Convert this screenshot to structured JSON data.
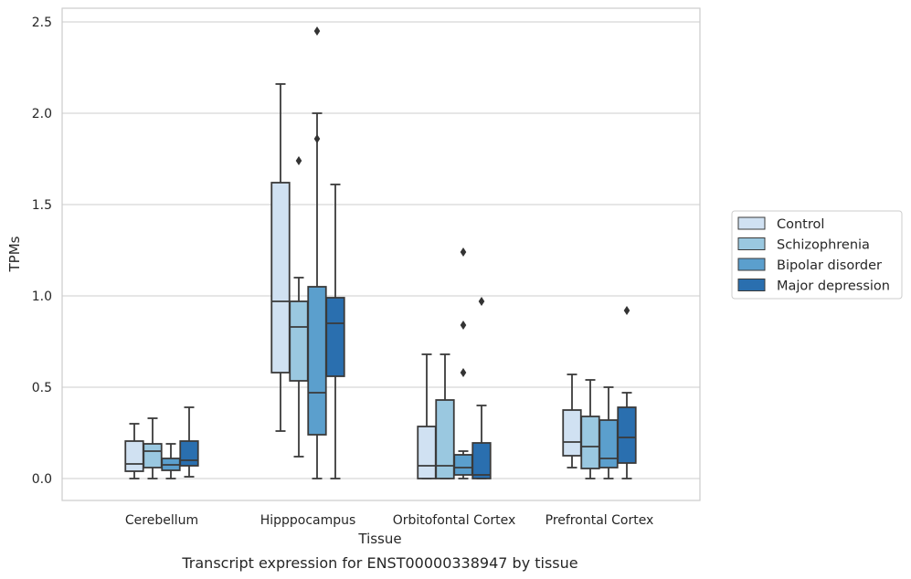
{
  "caption": "Transcript expression for ENST00000338947 by tissue",
  "chart_data": {
    "type": "box",
    "xlabel": "Tissue",
    "ylabel": "TPMs",
    "ylim": [
      -0.12,
      2.58
    ],
    "yticks": [
      0.0,
      0.5,
      1.0,
      1.5,
      2.0,
      2.5
    ],
    "ytick_labels": [
      "0.0",
      "0.5",
      "1.0",
      "1.5",
      "2.0",
      "2.5"
    ],
    "grid": "horizontal",
    "legend_position": "right",
    "categories": [
      "Cerebellum",
      "Hipppocampus",
      "Orbitofontal Cortex",
      "Prefrontal Cortex"
    ],
    "series": [
      {
        "name": "Control",
        "color": "#d0e1f2",
        "boxes": [
          {
            "whislo": 0.0,
            "q1": 0.04,
            "med": 0.08,
            "q3": 0.205,
            "whishi": 0.3,
            "fliers": []
          },
          {
            "whislo": 0.26,
            "q1": 0.58,
            "med": 0.97,
            "q3": 1.62,
            "whishi": 2.16,
            "fliers": []
          },
          {
            "whislo": 0.0,
            "q1": 0.0,
            "med": 0.07,
            "q3": 0.285,
            "whishi": 0.68,
            "fliers": []
          },
          {
            "whislo": 0.06,
            "q1": 0.125,
            "med": 0.2,
            "q3": 0.375,
            "whishi": 0.57,
            "fliers": []
          }
        ]
      },
      {
        "name": "Schizophrenia",
        "color": "#9ac8e0",
        "boxes": [
          {
            "whislo": 0.0,
            "q1": 0.06,
            "med": 0.15,
            "q3": 0.19,
            "whishi": 0.33,
            "fliers": []
          },
          {
            "whislo": 0.12,
            "q1": 0.535,
            "med": 0.83,
            "q3": 0.97,
            "whishi": 1.1,
            "fliers": [
              1.74
            ]
          },
          {
            "whislo": 0.0,
            "q1": 0.0,
            "med": 0.07,
            "q3": 0.43,
            "whishi": 0.68,
            "fliers": []
          },
          {
            "whislo": 0.0,
            "q1": 0.055,
            "med": 0.175,
            "q3": 0.34,
            "whishi": 0.54,
            "fliers": []
          }
        ]
      },
      {
        "name": "Bipolar disorder",
        "color": "#5b9fcd",
        "boxes": [
          {
            "whislo": 0.0,
            "q1": 0.045,
            "med": 0.075,
            "q3": 0.11,
            "whishi": 0.19,
            "fliers": []
          },
          {
            "whislo": 0.0,
            "q1": 0.24,
            "med": 0.47,
            "q3": 1.05,
            "whishi": 2.0,
            "fliers": [
              1.86,
              2.45
            ]
          },
          {
            "whislo": 0.0,
            "q1": 0.02,
            "med": 0.06,
            "q3": 0.13,
            "whishi": 0.15,
            "fliers": [
              0.58,
              0.84,
              1.24
            ]
          },
          {
            "whislo": 0.0,
            "q1": 0.06,
            "med": 0.11,
            "q3": 0.32,
            "whishi": 0.5,
            "fliers": []
          }
        ]
      },
      {
        "name": "Major depression",
        "color": "#2a6faf",
        "boxes": [
          {
            "whislo": 0.01,
            "q1": 0.07,
            "med": 0.1,
            "q3": 0.205,
            "whishi": 0.39,
            "fliers": []
          },
          {
            "whislo": 0.0,
            "q1": 0.56,
            "med": 0.85,
            "q3": 0.99,
            "whishi": 1.61,
            "fliers": []
          },
          {
            "whislo": 0.0,
            "q1": 0.0,
            "med": 0.02,
            "q3": 0.195,
            "whishi": 0.4,
            "fliers": [
              0.97
            ]
          },
          {
            "whislo": 0.0,
            "q1": 0.085,
            "med": 0.225,
            "q3": 0.39,
            "whishi": 0.47,
            "fliers": [
              0.92
            ]
          }
        ]
      }
    ]
  },
  "colors": {
    "edge": "#3a3a3a",
    "grid": "#cccccc",
    "frame": "#cccccc"
  }
}
